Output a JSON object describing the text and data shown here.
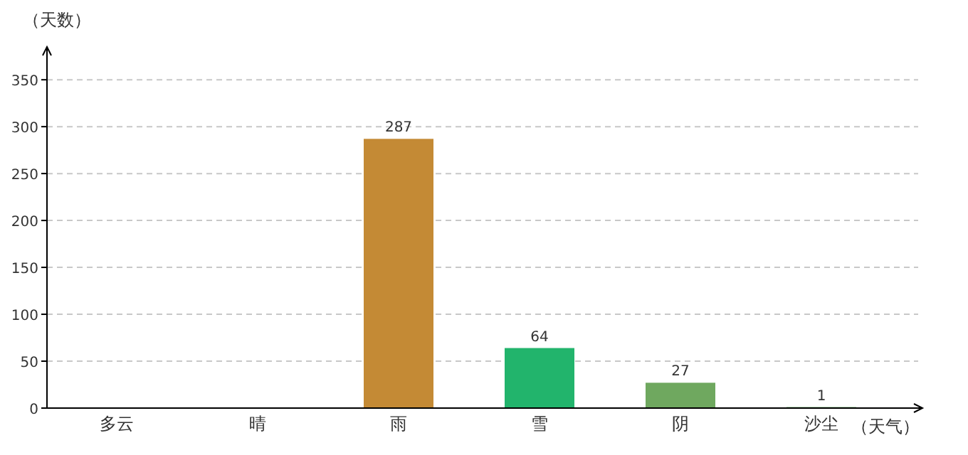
{
  "chart_data": {
    "type": "bar",
    "xlabel": "（天气）",
    "ylabel": "（天数）",
    "categories": [
      "多云",
      "晴",
      "雨",
      "雪",
      "阴",
      "沙尘"
    ],
    "values": [
      null,
      null,
      287,
      64,
      27,
      1
    ],
    "colors": [
      null,
      null,
      "#c48a35",
      "#22b46c",
      "#6fa85f",
      "#2a8a2a"
    ],
    "ylim": [
      0,
      385
    ],
    "yticks": [
      0,
      50,
      100,
      150,
      200,
      250,
      300,
      350
    ],
    "grid": "y",
    "data_labels": true
  }
}
